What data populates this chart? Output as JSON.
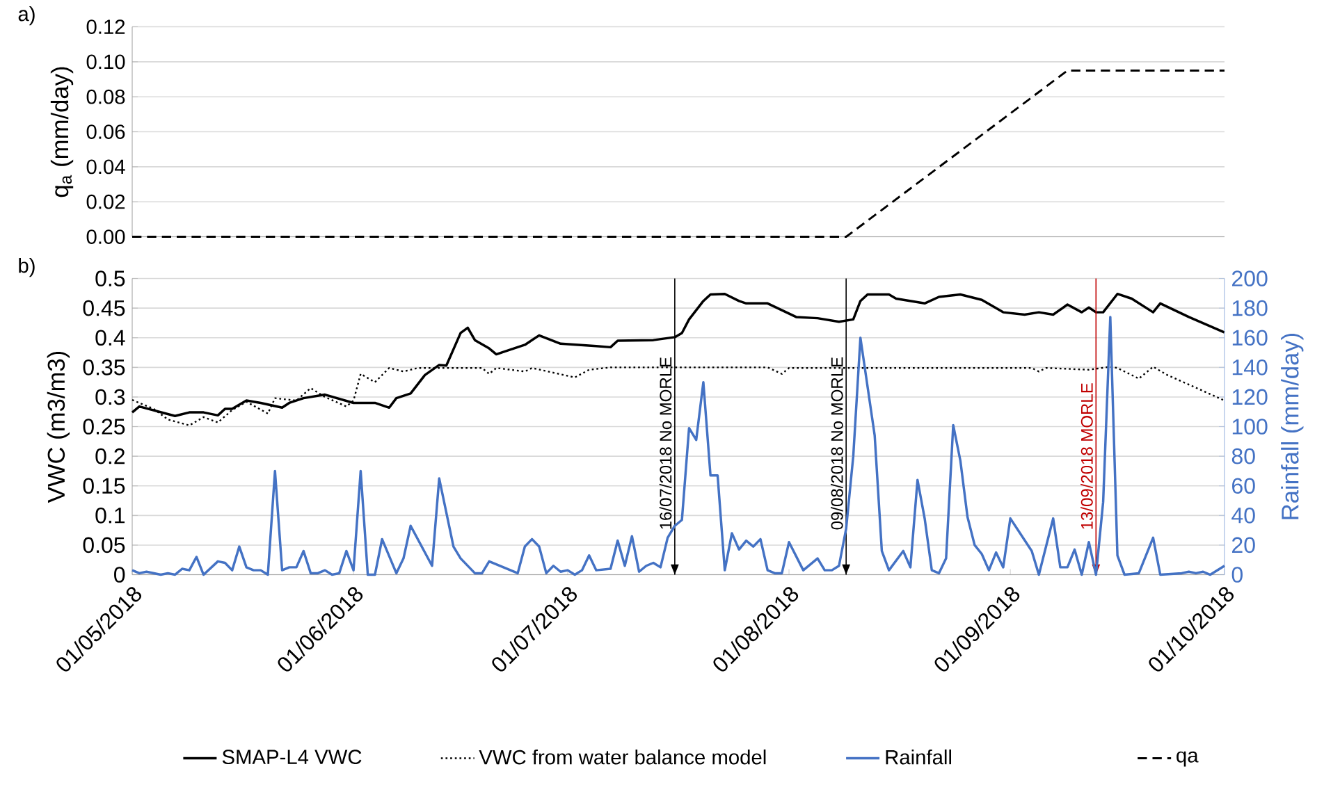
{
  "chart_data": [
    {
      "type": "line",
      "title": "a)",
      "ylabel": "q$_{a}$ (mm/day)",
      "xlim": [
        "2018-05-01",
        "2018-10-01"
      ],
      "ylim": [
        0,
        0.12
      ],
      "yticks": [
        {
          "value": 0,
          "label": "0.00"
        },
        {
          "value": 0.02,
          "label": "0.02"
        },
        {
          "value": 0.04,
          "label": "0.04"
        },
        {
          "value": 0.06,
          "label": "0.06"
        },
        {
          "value": 0.08,
          "label": "0.08"
        },
        {
          "value": 0.1,
          "label": "0.10"
        },
        {
          "value": 0.12,
          "label": "0.12"
        }
      ],
      "tick_labels": "y",
      "grid": "y",
      "legend": "bottom",
      "marker": "none",
      "series": [
        {
          "name": "qa",
          "color": "#000000",
          "line_style": "dashed",
          "x": [
            "2018-05-01",
            "2018-08-09",
            "2018-09-09",
            "2018-10-01"
          ],
          "values": [
            0,
            0,
            0.095,
            0.095
          ]
        }
      ]
    },
    {
      "type": "line",
      "title": "b)",
      "ylabel": "VWC (m3/m3)",
      "y2label": "Rainfall (mm/day)",
      "xlim": [
        "2018-05-01",
        "2018-10-01"
      ],
      "ylim": [
        0,
        0.5
      ],
      "y2lim": [
        0,
        200
      ],
      "xticks": [
        {
          "value": "2018-05-01",
          "label": "01/05/2018"
        },
        {
          "value": "2018-06-01",
          "label": "01/06/2018"
        },
        {
          "value": "2018-07-01",
          "label": "01/07/2018"
        },
        {
          "value": "2018-08-01",
          "label": "01/08/2018"
        },
        {
          "value": "2018-09-01",
          "label": "01/09/2018"
        },
        {
          "value": "2018-10-01",
          "label": "01/10/2018"
        }
      ],
      "yticks": [
        0,
        0.05,
        0.1,
        0.15,
        0.2,
        0.25,
        0.3,
        0.35,
        0.4,
        0.45,
        0.5
      ],
      "y2ticks": [
        0,
        20,
        40,
        60,
        80,
        100,
        120,
        140,
        160,
        180,
        200
      ],
      "grid": "y",
      "legend": "bottom",
      "marker": "none",
      "ref_lines": [
        {
          "axis": "x",
          "value": "2018-07-16",
          "label": "16/07/2018 No MORLE",
          "color": "#000000"
        },
        {
          "axis": "x",
          "value": "2018-08-09",
          "label": "09/08/2018 No MORLE",
          "color": "#000000"
        },
        {
          "axis": "x",
          "value": "2018-09-13",
          "label": "13/09/2018 MORLE",
          "color": "#c00000"
        }
      ],
      "series": [
        {
          "name": "SMAP-L4 VWC",
          "color": "#000000",
          "line_style": "solid",
          "x": [
            "2018-05-01",
            "2018-05-02",
            "2018-05-07",
            "2018-05-09",
            "2018-05-11",
            "2018-05-13",
            "2018-05-14",
            "2018-05-15",
            "2018-05-17",
            "2018-05-19",
            "2018-05-22",
            "2018-05-23",
            "2018-05-25",
            "2018-05-28",
            "2018-06-01",
            "2018-06-04",
            "2018-06-06",
            "2018-06-07",
            "2018-06-09",
            "2018-06-11",
            "2018-06-13",
            "2018-06-14",
            "2018-06-16",
            "2018-06-17",
            "2018-06-18",
            "2018-06-20",
            "2018-06-21",
            "2018-06-22",
            "2018-06-25",
            "2018-06-27",
            "2018-06-30",
            "2018-07-05",
            "2018-07-07",
            "2018-07-08",
            "2018-07-13",
            "2018-07-16",
            "2018-07-17",
            "2018-07-18",
            "2018-07-20",
            "2018-07-21",
            "2018-07-23",
            "2018-07-25",
            "2018-07-26",
            "2018-07-29",
            "2018-08-02",
            "2018-08-05",
            "2018-08-08",
            "2018-08-10",
            "2018-08-11",
            "2018-08-12",
            "2018-08-15",
            "2018-08-16",
            "2018-08-20",
            "2018-08-22",
            "2018-08-25",
            "2018-08-28",
            "2018-08-31",
            "2018-09-03",
            "2018-09-05",
            "2018-09-07",
            "2018-09-09",
            "2018-09-11",
            "2018-09-12",
            "2018-09-13",
            "2018-09-14",
            "2018-09-16",
            "2018-09-18",
            "2018-09-21",
            "2018-09-22",
            "2018-09-26",
            "2018-10-01"
          ],
          "values": [
            0.274,
            0.284,
            0.268,
            0.274,
            0.274,
            0.269,
            0.28,
            0.28,
            0.294,
            0.29,
            0.282,
            0.29,
            0.298,
            0.304,
            0.29,
            0.29,
            0.282,
            0.298,
            0.306,
            0.337,
            0.354,
            0.353,
            0.408,
            0.417,
            0.396,
            0.382,
            0.372,
            0.376,
            0.388,
            0.404,
            0.39,
            0.386,
            0.384,
            0.395,
            0.396,
            0.401,
            0.408,
            0.431,
            0.462,
            0.473,
            0.474,
            0.462,
            0.458,
            0.458,
            0.435,
            0.433,
            0.427,
            0.431,
            0.462,
            0.473,
            0.473,
            0.466,
            0.458,
            0.469,
            0.473,
            0.464,
            0.443,
            0.439,
            0.443,
            0.439,
            0.456,
            0.443,
            0.451,
            0.443,
            0.443,
            0.474,
            0.466,
            0.443,
            0.458,
            0.435,
            0.409
          ]
        },
        {
          "name": "VWC from water balance model",
          "color": "#000000",
          "line_style": "dotted",
          "x": [
            "2018-05-01",
            "2018-05-04",
            "2018-05-06",
            "2018-05-09",
            "2018-05-11",
            "2018-05-13",
            "2018-05-15",
            "2018-05-17",
            "2018-05-20",
            "2018-05-21",
            "2018-05-24",
            "2018-05-26",
            "2018-05-28",
            "2018-05-31",
            "2018-06-01",
            "2018-06-02",
            "2018-06-04",
            "2018-06-06",
            "2018-06-08",
            "2018-06-10",
            "2018-06-19",
            "2018-06-20",
            "2018-06-21",
            "2018-06-25",
            "2018-06-26",
            "2018-06-29",
            "2018-07-02",
            "2018-07-04",
            "2018-07-07",
            "2018-07-29",
            "2018-07-31",
            "2018-08-01",
            "2018-09-04",
            "2018-09-05",
            "2018-09-06",
            "2018-09-12",
            "2018-09-15",
            "2018-09-16",
            "2018-09-19",
            "2018-09-21",
            "2018-09-23",
            "2018-09-26",
            "2018-10-01"
          ],
          "values": [
            0.295,
            0.28,
            0.262,
            0.252,
            0.266,
            0.257,
            0.278,
            0.292,
            0.272,
            0.298,
            0.294,
            0.315,
            0.3,
            0.284,
            0.294,
            0.339,
            0.325,
            0.349,
            0.343,
            0.349,
            0.349,
            0.339,
            0.349,
            0.343,
            0.349,
            0.341,
            0.333,
            0.346,
            0.35,
            0.35,
            0.339,
            0.349,
            0.349,
            0.343,
            0.349,
            0.346,
            0.351,
            0.349,
            0.331,
            0.351,
            0.337,
            0.321,
            0.294
          ]
        },
        {
          "name": "Rainfall",
          "color": "#4472c4",
          "line_style": "solid",
          "axis": "y2",
          "x": [
            "2018-05-01",
            "2018-05-02",
            "2018-05-03",
            "2018-05-05",
            "2018-05-06",
            "2018-05-07",
            "2018-05-08",
            "2018-05-09",
            "2018-05-10",
            "2018-05-11",
            "2018-05-13",
            "2018-05-14",
            "2018-05-15",
            "2018-05-16",
            "2018-05-17",
            "2018-05-18",
            "2018-05-19",
            "2018-05-20",
            "2018-05-21",
            "2018-05-22",
            "2018-05-23",
            "2018-05-24",
            "2018-05-25",
            "2018-05-26",
            "2018-05-27",
            "2018-05-28",
            "2018-05-29",
            "2018-05-30",
            "2018-05-31",
            "2018-06-01",
            "2018-06-02",
            "2018-06-03",
            "2018-06-04",
            "2018-06-05",
            "2018-06-07",
            "2018-06-08",
            "2018-06-09",
            "2018-06-12",
            "2018-06-13",
            "2018-06-15",
            "2018-06-16",
            "2018-06-18",
            "2018-06-19",
            "2018-06-20",
            "2018-06-24",
            "2018-06-25",
            "2018-06-26",
            "2018-06-27",
            "2018-06-28",
            "2018-06-29",
            "2018-06-30",
            "2018-07-01",
            "2018-07-02",
            "2018-07-03",
            "2018-07-04",
            "2018-07-05",
            "2018-07-07",
            "2018-07-08",
            "2018-07-09",
            "2018-07-10",
            "2018-07-11",
            "2018-07-12",
            "2018-07-13",
            "2018-07-14",
            "2018-07-15",
            "2018-07-16",
            "2018-07-17",
            "2018-07-18",
            "2018-07-19",
            "2018-07-20",
            "2018-07-21",
            "2018-07-22",
            "2018-07-23",
            "2018-07-24",
            "2018-07-25",
            "2018-07-26",
            "2018-07-27",
            "2018-07-28",
            "2018-07-29",
            "2018-07-30",
            "2018-07-31",
            "2018-08-01",
            "2018-08-03",
            "2018-08-05",
            "2018-08-06",
            "2018-08-07",
            "2018-08-08",
            "2018-08-09",
            "2018-08-10",
            "2018-08-11",
            "2018-08-13",
            "2018-08-14",
            "2018-08-15",
            "2018-08-17",
            "2018-08-18",
            "2018-08-19",
            "2018-08-20",
            "2018-08-21",
            "2018-08-22",
            "2018-08-23",
            "2018-08-24",
            "2018-08-25",
            "2018-08-26",
            "2018-08-27",
            "2018-08-28",
            "2018-08-29",
            "2018-08-30",
            "2018-08-31",
            "2018-09-01",
            "2018-09-04",
            "2018-09-05",
            "2018-09-07",
            "2018-09-08",
            "2018-09-09",
            "2018-09-10",
            "2018-09-11",
            "2018-09-12",
            "2018-09-13",
            "2018-09-14",
            "2018-09-15",
            "2018-09-16",
            "2018-09-17",
            "2018-09-19",
            "2018-09-21",
            "2018-09-22",
            "2018-09-25",
            "2018-09-26",
            "2018-09-27",
            "2018-09-28",
            "2018-09-29",
            "2018-10-01"
          ],
          "values": [
            3,
            1,
            2,
            0,
            1,
            0,
            4,
            3,
            12,
            0,
            9,
            8,
            3,
            19,
            5,
            3,
            3,
            0,
            70,
            3,
            5,
            5,
            16,
            1,
            1,
            3,
            0,
            1,
            16,
            3,
            70,
            0,
            0,
            24,
            1,
            11,
            33,
            6,
            65,
            19,
            11,
            1,
            1,
            9,
            1,
            19,
            24,
            19,
            1,
            6,
            2,
            3,
            0,
            3,
            13,
            3,
            4,
            23,
            6,
            26,
            2,
            6,
            8,
            5,
            25,
            33,
            37,
            99,
            91,
            130,
            67,
            67,
            3,
            28,
            17,
            23,
            19,
            24,
            3,
            1,
            1,
            22,
            3,
            11,
            3,
            3,
            6,
            31,
            80,
            160,
            94,
            16,
            3,
            16,
            5,
            64,
            38,
            3,
            1,
            11,
            101,
            77,
            39,
            20,
            14,
            3,
            15,
            5,
            38,
            16,
            0,
            38,
            5,
            5,
            17,
            0,
            22,
            0,
            49,
            174,
            13,
            0,
            1,
            25,
            0,
            1,
            2,
            1,
            2,
            0,
            6
          ]
        }
      ]
    }
  ]
}
